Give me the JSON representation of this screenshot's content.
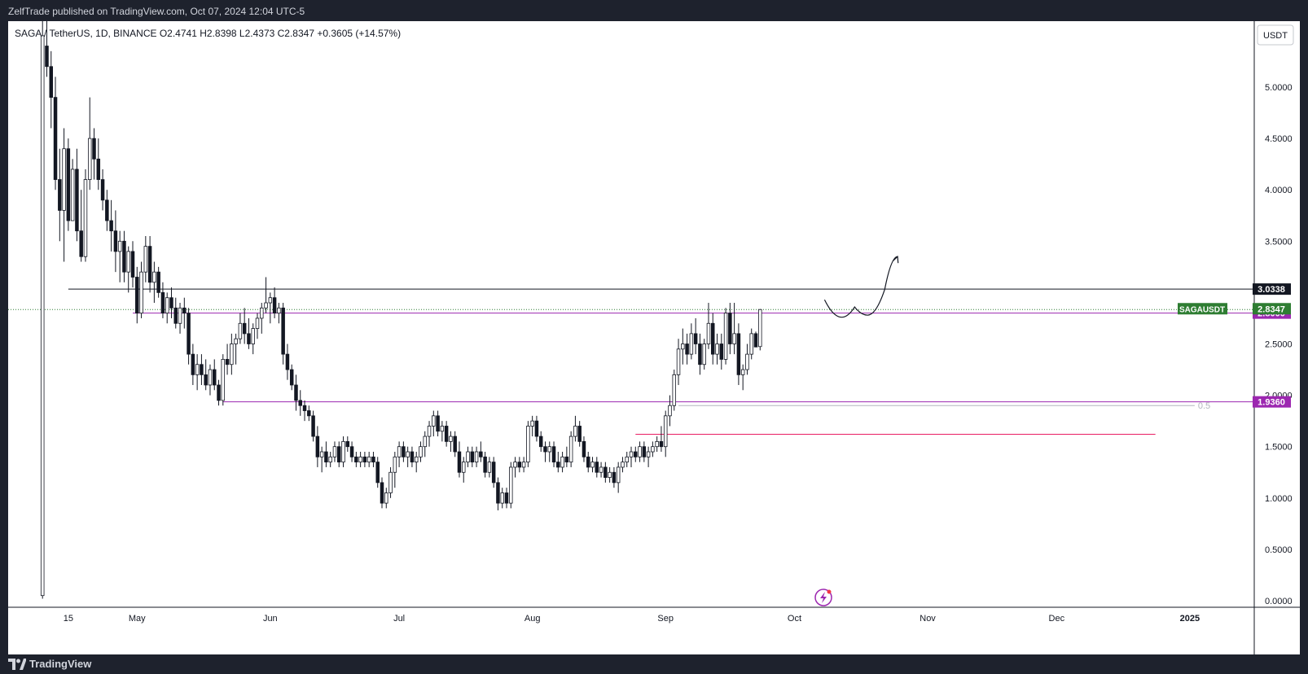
{
  "header": {
    "publish_info": "ZelfTrade published on TradingView.com, Oct 07, 2024 12:04 UTC-5"
  },
  "footer": {
    "brand": "TradingView"
  },
  "chart_data": {
    "type": "candlestick",
    "symbol": "SAGAUSDT",
    "legend": "SAGA / TetherUS, 1D, BINANCE  O2.4741  H2.8398  L2.4373  C2.8347  +0.3605 (+14.57%)",
    "currency": "USDT",
    "ylim": [
      0,
      5.7
    ],
    "y_ticks": [
      "0.0000",
      "0.5000",
      "1.0000",
      "1.5000",
      "2.0000",
      "2.5000",
      "3.5000",
      "4.0000",
      "4.5000",
      "5.0000"
    ],
    "x_ticks": [
      {
        "label": "15",
        "date": "2024-04-15"
      },
      {
        "label": "May",
        "date": "2024-05-01"
      },
      {
        "label": "Jun",
        "date": "2024-06-01"
      },
      {
        "label": "Jul",
        "date": "2024-07-01"
      },
      {
        "label": "Aug",
        "date": "2024-08-01"
      },
      {
        "label": "Sep",
        "date": "2024-09-01"
      },
      {
        "label": "Oct",
        "date": "2024-10-01"
      },
      {
        "label": "Nov",
        "date": "2024-11-01"
      },
      {
        "label": "Dec",
        "date": "2024-12-01"
      },
      {
        "label": "2025",
        "date": "2025-01-01"
      }
    ],
    "x_range": [
      "2024-04-01",
      "2025-01-16"
    ],
    "candles_first_date": "2024-04-09",
    "candles": [
      [
        0.05,
        5.7,
        0.02,
        5.5
      ],
      [
        5.4,
        5.65,
        5.1,
        5.2
      ],
      [
        5.2,
        5.35,
        4.6,
        4.9
      ],
      [
        4.9,
        5.1,
        4.0,
        4.1
      ],
      [
        4.1,
        4.4,
        3.5,
        3.8
      ],
      [
        3.8,
        4.6,
        3.3,
        4.4
      ],
      [
        4.4,
        4.5,
        3.6,
        3.7
      ],
      [
        3.7,
        4.3,
        3.7,
        4.2
      ],
      [
        4.2,
        4.4,
        3.5,
        3.6
      ],
      [
        3.6,
        4.0,
        3.3,
        3.35
      ],
      [
        3.35,
        4.2,
        3.3,
        4.1
      ],
      [
        4.1,
        4.9,
        4.0,
        4.5
      ],
      [
        4.5,
        4.6,
        4.1,
        4.3
      ],
      [
        4.3,
        4.5,
        4.0,
        4.1
      ],
      [
        4.1,
        4.2,
        3.8,
        3.9
      ],
      [
        3.9,
        4.0,
        3.6,
        3.7
      ],
      [
        3.7,
        3.9,
        3.4,
        3.6
      ],
      [
        3.6,
        3.8,
        3.2,
        3.4
      ],
      [
        3.4,
        3.6,
        3.1,
        3.5
      ],
      [
        3.5,
        3.6,
        3.1,
        3.2
      ],
      [
        3.2,
        3.45,
        3.0,
        3.4
      ],
      [
        3.4,
        3.5,
        3.05,
        3.15
      ],
      [
        3.15,
        3.25,
        2.7,
        2.8
      ],
      [
        2.8,
        3.3,
        2.75,
        3.2
      ],
      [
        3.2,
        3.55,
        3.1,
        3.45
      ],
      [
        3.45,
        3.55,
        3.0,
        3.1
      ],
      [
        3.1,
        3.3,
        2.9,
        3.2
      ],
      [
        3.2,
        3.25,
        2.95,
        3.0
      ],
      [
        3.0,
        3.1,
        2.75,
        2.8
      ],
      [
        2.8,
        3.0,
        2.7,
        2.95
      ],
      [
        2.95,
        3.05,
        2.75,
        2.85
      ],
      [
        2.85,
        2.95,
        2.65,
        2.7
      ],
      [
        2.7,
        2.9,
        2.6,
        2.85
      ],
      [
        2.85,
        2.95,
        2.65,
        2.8
      ],
      [
        2.8,
        2.85,
        2.3,
        2.4
      ],
      [
        2.4,
        2.5,
        2.1,
        2.2
      ],
      [
        2.2,
        2.4,
        2.05,
        2.3
      ],
      [
        2.3,
        2.4,
        2.1,
        2.2
      ],
      [
        2.2,
        2.35,
        2.05,
        2.1
      ],
      [
        2.1,
        2.3,
        2.0,
        2.25
      ],
      [
        2.25,
        2.35,
        2.05,
        2.1
      ],
      [
        2.1,
        2.15,
        1.9,
        1.95
      ],
      [
        1.95,
        2.4,
        1.9,
        2.35
      ],
      [
        2.35,
        2.5,
        2.2,
        2.3
      ],
      [
        2.3,
        2.6,
        2.2,
        2.5
      ],
      [
        2.5,
        2.6,
        2.3,
        2.55
      ],
      [
        2.55,
        2.8,
        2.5,
        2.7
      ],
      [
        2.7,
        2.85,
        2.5,
        2.6
      ],
      [
        2.6,
        2.75,
        2.45,
        2.5
      ],
      [
        2.5,
        2.7,
        2.4,
        2.65
      ],
      [
        2.65,
        2.8,
        2.55,
        2.75
      ],
      [
        2.75,
        2.9,
        2.6,
        2.85
      ],
      [
        2.85,
        3.15,
        2.8,
        2.9
      ],
      [
        2.9,
        3.0,
        2.7,
        2.95
      ],
      [
        2.95,
        3.05,
        2.75,
        2.8
      ],
      [
        2.8,
        2.9,
        2.7,
        2.85
      ],
      [
        2.85,
        2.9,
        2.3,
        2.4
      ],
      [
        2.4,
        2.5,
        2.15,
        2.25
      ],
      [
        2.25,
        2.3,
        2.05,
        2.1
      ],
      [
        2.1,
        2.2,
        1.85,
        1.95
      ],
      [
        1.95,
        2.05,
        1.8,
        1.9
      ],
      [
        1.9,
        1.95,
        1.75,
        1.85
      ],
      [
        1.85,
        1.9,
        1.75,
        1.8
      ],
      [
        1.8,
        1.85,
        1.55,
        1.6
      ],
      [
        1.6,
        1.7,
        1.3,
        1.4
      ],
      [
        1.4,
        1.5,
        1.25,
        1.45
      ],
      [
        1.45,
        1.55,
        1.3,
        1.35
      ],
      [
        1.35,
        1.45,
        1.3,
        1.4
      ],
      [
        1.4,
        1.55,
        1.35,
        1.5
      ],
      [
        1.5,
        1.55,
        1.3,
        1.35
      ],
      [
        1.35,
        1.6,
        1.3,
        1.55
      ],
      [
        1.55,
        1.6,
        1.45,
        1.5
      ],
      [
        1.5,
        1.55,
        1.35,
        1.4
      ],
      [
        1.4,
        1.45,
        1.3,
        1.35
      ],
      [
        1.35,
        1.45,
        1.3,
        1.4
      ],
      [
        1.4,
        1.45,
        1.3,
        1.35
      ],
      [
        1.35,
        1.45,
        1.3,
        1.4
      ],
      [
        1.4,
        1.45,
        1.3,
        1.35
      ],
      [
        1.35,
        1.4,
        1.1,
        1.15
      ],
      [
        1.15,
        1.2,
        0.9,
        0.95
      ],
      [
        0.95,
        1.1,
        0.9,
        1.05
      ],
      [
        1.05,
        1.3,
        1.0,
        1.25
      ],
      [
        1.25,
        1.45,
        1.1,
        1.4
      ],
      [
        1.4,
        1.55,
        1.3,
        1.5
      ],
      [
        1.5,
        1.55,
        1.35,
        1.4
      ],
      [
        1.4,
        1.5,
        1.3,
        1.45
      ],
      [
        1.45,
        1.5,
        1.3,
        1.35
      ],
      [
        1.35,
        1.45,
        1.25,
        1.4
      ],
      [
        1.4,
        1.55,
        1.35,
        1.5
      ],
      [
        1.5,
        1.65,
        1.4,
        1.6
      ],
      [
        1.6,
        1.75,
        1.5,
        1.7
      ],
      [
        1.7,
        1.85,
        1.6,
        1.8
      ],
      [
        1.8,
        1.85,
        1.6,
        1.65
      ],
      [
        1.65,
        1.75,
        1.55,
        1.7
      ],
      [
        1.7,
        1.75,
        1.5,
        1.55
      ],
      [
        1.55,
        1.65,
        1.45,
        1.6
      ],
      [
        1.6,
        1.65,
        1.4,
        1.45
      ],
      [
        1.45,
        1.55,
        1.2,
        1.25
      ],
      [
        1.25,
        1.4,
        1.15,
        1.35
      ],
      [
        1.35,
        1.5,
        1.3,
        1.45
      ],
      [
        1.45,
        1.5,
        1.3,
        1.35
      ],
      [
        1.35,
        1.5,
        1.3,
        1.45
      ],
      [
        1.45,
        1.55,
        1.35,
        1.4
      ],
      [
        1.4,
        1.45,
        1.2,
        1.25
      ],
      [
        1.25,
        1.4,
        1.2,
        1.35
      ],
      [
        1.35,
        1.4,
        1.1,
        1.15
      ],
      [
        1.15,
        1.2,
        0.88,
        0.95
      ],
      [
        0.95,
        1.1,
        0.9,
        1.05
      ],
      [
        1.05,
        1.1,
        0.9,
        0.95
      ],
      [
        0.95,
        1.35,
        0.9,
        1.3
      ],
      [
        1.3,
        1.4,
        1.2,
        1.35
      ],
      [
        1.35,
        1.4,
        1.25,
        1.3
      ],
      [
        1.3,
        1.4,
        1.25,
        1.35
      ],
      [
        1.35,
        1.75,
        1.3,
        1.7
      ],
      [
        1.7,
        1.8,
        1.6,
        1.75
      ],
      [
        1.75,
        1.8,
        1.55,
        1.6
      ],
      [
        1.6,
        1.65,
        1.45,
        1.5
      ],
      [
        1.5,
        1.55,
        1.35,
        1.45
      ],
      [
        1.45,
        1.55,
        1.35,
        1.5
      ],
      [
        1.5,
        1.55,
        1.3,
        1.35
      ],
      [
        1.35,
        1.45,
        1.25,
        1.3
      ],
      [
        1.3,
        1.45,
        1.25,
        1.4
      ],
      [
        1.4,
        1.5,
        1.3,
        1.35
      ],
      [
        1.35,
        1.65,
        1.3,
        1.6
      ],
      [
        1.6,
        1.8,
        1.55,
        1.7
      ],
      [
        1.7,
        1.75,
        1.5,
        1.55
      ],
      [
        1.55,
        1.6,
        1.35,
        1.4
      ],
      [
        1.4,
        1.45,
        1.25,
        1.3
      ],
      [
        1.3,
        1.4,
        1.25,
        1.35
      ],
      [
        1.35,
        1.4,
        1.2,
        1.25
      ],
      [
        1.25,
        1.35,
        1.2,
        1.3
      ],
      [
        1.3,
        1.35,
        1.15,
        1.2
      ],
      [
        1.2,
        1.3,
        1.15,
        1.25
      ],
      [
        1.25,
        1.3,
        1.1,
        1.15
      ],
      [
        1.15,
        1.35,
        1.05,
        1.3
      ],
      [
        1.3,
        1.4,
        1.25,
        1.35
      ],
      [
        1.35,
        1.45,
        1.3,
        1.4
      ],
      [
        1.4,
        1.5,
        1.3,
        1.45
      ],
      [
        1.45,
        1.5,
        1.35,
        1.4
      ],
      [
        1.4,
        1.55,
        1.35,
        1.5
      ],
      [
        1.5,
        1.55,
        1.35,
        1.4
      ],
      [
        1.4,
        1.5,
        1.3,
        1.45
      ],
      [
        1.45,
        1.55,
        1.4,
        1.5
      ],
      [
        1.5,
        1.6,
        1.45,
        1.55
      ],
      [
        1.55,
        1.7,
        1.45,
        1.5
      ],
      [
        1.5,
        1.85,
        1.4,
        1.8
      ],
      [
        1.8,
        2.0,
        1.7,
        1.9
      ],
      [
        1.9,
        2.25,
        1.85,
        2.2
      ],
      [
        2.2,
        2.55,
        2.1,
        2.45
      ],
      [
        2.45,
        2.65,
        2.3,
        2.5
      ],
      [
        2.5,
        2.6,
        2.3,
        2.4
      ],
      [
        2.4,
        2.7,
        2.35,
        2.6
      ],
      [
        2.6,
        2.75,
        2.4,
        2.5
      ],
      [
        2.5,
        2.6,
        2.2,
        2.3
      ],
      [
        2.3,
        2.55,
        2.25,
        2.5
      ],
      [
        2.5,
        2.9,
        2.45,
        2.7
      ],
      [
        2.7,
        2.8,
        2.3,
        2.4
      ],
      [
        2.4,
        2.6,
        2.3,
        2.5
      ],
      [
        2.5,
        2.6,
        2.25,
        2.35
      ],
      [
        2.35,
        2.85,
        2.3,
        2.8
      ],
      [
        2.8,
        2.9,
        2.4,
        2.5
      ],
      [
        2.5,
        2.9,
        2.4,
        2.6
      ],
      [
        2.6,
        2.7,
        2.1,
        2.2
      ],
      [
        2.2,
        2.3,
        2.05,
        2.25
      ],
      [
        2.25,
        2.5,
        2.2,
        2.4
      ],
      [
        2.4,
        2.65,
        2.35,
        2.6
      ],
      [
        2.6,
        2.62,
        2.5,
        2.47
      ],
      [
        2.4741,
        2.8398,
        2.4373,
        2.8347
      ]
    ],
    "levels": [
      {
        "name": "resistance",
        "value": 3.0338,
        "label": "3.0338",
        "start": "2024-04-15",
        "color": "#131722"
      },
      {
        "name": "range-high",
        "value": 2.8,
        "label": "2.8000",
        "start": "2024-04-30",
        "color": "#9c27b0"
      },
      {
        "name": "range-mid",
        "value": 1.936,
        "label": "1.9360",
        "start": "2024-05-21",
        "color": "#9c27b0"
      },
      {
        "name": "support",
        "value": 1.62,
        "start": "2024-08-25",
        "end": "2024-12-24",
        "color": "#e91e63"
      }
    ],
    "fib_level": {
      "label": "0.5",
      "value": 1.9,
      "start": "2024-09-04",
      "end": "2025-01-01"
    },
    "last_price": {
      "symbol": "SAGAUSDT",
      "label": "2.8347",
      "value": 2.8347,
      "color": "#2e7d32"
    },
    "projection_path": [
      {
        "date": "2024-10-08",
        "price": 2.93
      },
      {
        "date": "2024-10-12",
        "price": 2.76
      },
      {
        "date": "2024-10-15",
        "price": 2.86
      },
      {
        "date": "2024-10-18",
        "price": 2.78
      },
      {
        "date": "2024-10-22",
        "price": 3.03
      },
      {
        "date": "2024-10-25",
        "price": 3.35
      }
    ],
    "colors": {
      "up": "#ffffff",
      "down": "#131722",
      "wick": "#131722",
      "grid": "none"
    }
  }
}
